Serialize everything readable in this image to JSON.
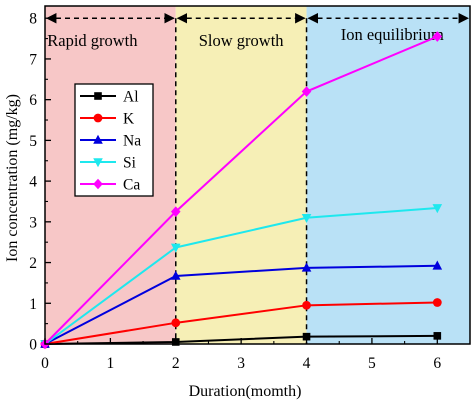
{
  "chart_data": {
    "type": "line",
    "title": "",
    "xlabel": "Duration(momth)",
    "ylabel": "Ion concentration  (mg/kg)",
    "xlim": [
      0,
      6.5
    ],
    "ylim": [
      0,
      8.3
    ],
    "x_ticks": [
      0,
      1,
      2,
      3,
      4,
      5,
      6
    ],
    "y_ticks": [
      0,
      1,
      2,
      3,
      4,
      5,
      6,
      7,
      8
    ],
    "grid": false,
    "legend_position": "upper-left",
    "x": [
      0,
      2,
      4,
      6
    ],
    "series": [
      {
        "name": "Al",
        "values": [
          0,
          0.05,
          0.18,
          0.2
        ],
        "color": "#000000",
        "marker": "square"
      },
      {
        "name": "K",
        "values": [
          0,
          0.52,
          0.95,
          1.02
        ],
        "color": "#ff0000",
        "marker": "circle"
      },
      {
        "name": "Na",
        "values": [
          0,
          1.67,
          1.87,
          1.92
        ],
        "color": "#0000dd",
        "marker": "triangle-up"
      },
      {
        "name": "Si",
        "values": [
          0,
          2.37,
          3.1,
          3.34
        ],
        "color": "#1ee8ee",
        "marker": "triangle-down"
      },
      {
        "name": "Ca",
        "values": [
          0,
          3.25,
          6.2,
          7.55
        ],
        "color": "#ff00ff",
        "marker": "diamond"
      }
    ],
    "phases": [
      {
        "label": "Rapid growth",
        "x_range": [
          0,
          2
        ],
        "color": "#f7c7c7"
      },
      {
        "label": "Slow growth",
        "x_range": [
          2,
          4
        ],
        "color": "#f6efb6"
      },
      {
        "label": "Ion equilibrium",
        "x_range": [
          4,
          6.5
        ],
        "color": "#b9e1f6"
      }
    ],
    "phase_boundary_level": 8,
    "phase_boundaries_x": [
      2,
      4
    ]
  }
}
